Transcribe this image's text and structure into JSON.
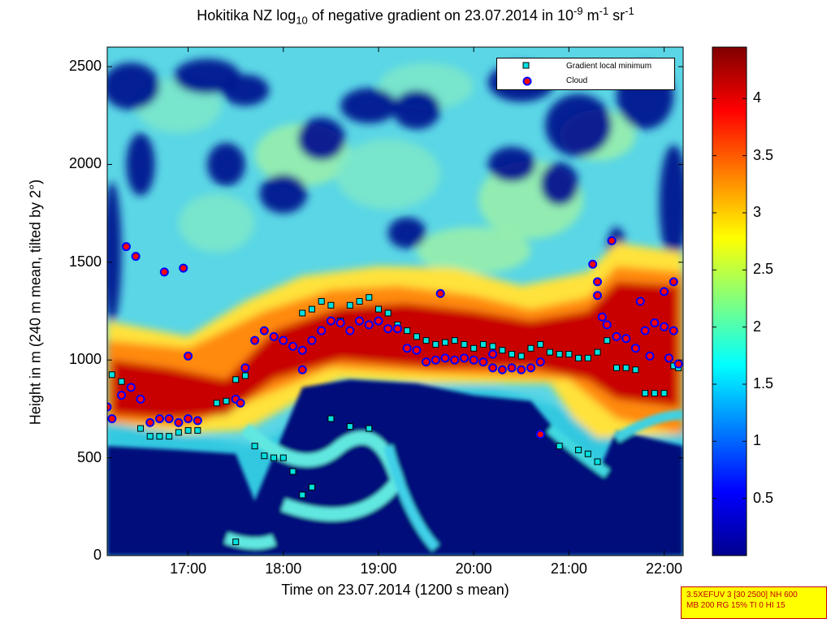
{
  "title": {
    "prefix": "Hokitika NZ log",
    "sub10": "10",
    "middle": " of negative gradient on 23.07.2014 in 10",
    "sup1": "-9",
    "m_unit": " m",
    "sup2": "-1",
    "sr_unit": " sr",
    "sup3": "-1"
  },
  "legend": {
    "entries": [
      {
        "label": "Gradient local minimum",
        "marker": "square",
        "fill": "#00e0e0",
        "edge": "#000000"
      },
      {
        "label": "Cloud",
        "marker": "circle",
        "fill": "#ff0000",
        "edge": "#0000ff"
      }
    ]
  },
  "settings": {
    "line1": "3.5XEFUV 3 [30 2500] NH 600",
    "line2": "MB 200 RG 15% TI 0 HI 15"
  },
  "chart_data": {
    "type": "heatmap",
    "title": "Hokitika NZ log10 of negative gradient on 23.07.2014 in 10^-9 m^-1 sr^-1",
    "xlabel": "Time on 23.07.2014 (1200 s mean)",
    "ylabel": "Height in m (240 m mean, tilted by 2°)",
    "xlim": [
      16.15,
      22.2
    ],
    "ylim": [
      0,
      2600
    ],
    "xticks": [
      17,
      18,
      19,
      20,
      21,
      22
    ],
    "xtick_labels": [
      "17:00",
      "18:00",
      "19:00",
      "20:00",
      "21:00",
      "22:00"
    ],
    "yticks": [
      0,
      500,
      1000,
      1500,
      2000,
      2500
    ],
    "ytick_labels": [
      "0",
      "500",
      "1000",
      "1500",
      "2000",
      "2500"
    ],
    "colorbar": {
      "colormap": "jet",
      "clim": [
        0,
        4.45
      ],
      "ticks": [
        0.5,
        1,
        1.5,
        2,
        2.5,
        3,
        3.5,
        4
      ],
      "tick_labels": [
        "0.5",
        "1",
        "1.5",
        "2",
        "2.5",
        "3",
        "3.5",
        "4"
      ]
    },
    "legend_location": "top-right",
    "series": [
      {
        "name": "Gradient local minimum",
        "marker": "square",
        "points": [
          [
            16.2,
            925
          ],
          [
            16.3,
            890
          ],
          [
            16.4,
            860
          ],
          [
            16.5,
            650
          ],
          [
            16.6,
            610
          ],
          [
            16.7,
            610
          ],
          [
            16.8,
            610
          ],
          [
            16.9,
            630
          ],
          [
            17.0,
            640
          ],
          [
            17.1,
            640
          ],
          [
            17.3,
            780
          ],
          [
            17.4,
            790
          ],
          [
            17.5,
            900
          ],
          [
            17.6,
            920
          ],
          [
            17.7,
            560
          ],
          [
            17.8,
            510
          ],
          [
            17.9,
            500
          ],
          [
            18.0,
            500
          ],
          [
            18.1,
            430
          ],
          [
            18.2,
            1240
          ],
          [
            18.3,
            1260
          ],
          [
            18.4,
            1300
          ],
          [
            18.5,
            1280
          ],
          [
            18.6,
            1200
          ],
          [
            18.7,
            1280
          ],
          [
            18.8,
            1300
          ],
          [
            18.9,
            1320
          ],
          [
            19.0,
            1260
          ],
          [
            19.1,
            1240
          ],
          [
            19.2,
            1180
          ],
          [
            19.3,
            1150
          ],
          [
            19.4,
            1120
          ],
          [
            19.5,
            1100
          ],
          [
            19.6,
            1080
          ],
          [
            19.7,
            1090
          ],
          [
            19.8,
            1100
          ],
          [
            19.9,
            1080
          ],
          [
            20.0,
            1060
          ],
          [
            20.1,
            1080
          ],
          [
            20.2,
            1070
          ],
          [
            20.3,
            1050
          ],
          [
            20.4,
            1030
          ],
          [
            20.5,
            1020
          ],
          [
            20.6,
            1060
          ],
          [
            20.7,
            1080
          ],
          [
            20.8,
            1040
          ],
          [
            20.9,
            1030
          ],
          [
            21.0,
            1030
          ],
          [
            21.1,
            1010
          ],
          [
            21.2,
            1010
          ],
          [
            21.3,
            1040
          ],
          [
            21.4,
            1100
          ],
          [
            21.5,
            960
          ],
          [
            21.6,
            960
          ],
          [
            21.7,
            950
          ],
          [
            21.8,
            830
          ],
          [
            21.9,
            830
          ],
          [
            22.0,
            830
          ],
          [
            22.1,
            970
          ],
          [
            22.15,
            960
          ],
          [
            18.3,
            350
          ],
          [
            18.2,
            310
          ],
          [
            18.5,
            700
          ],
          [
            18.7,
            660
          ],
          [
            18.9,
            650
          ],
          [
            20.9,
            560
          ],
          [
            21.1,
            540
          ],
          [
            21.2,
            520
          ],
          [
            21.3,
            480
          ],
          [
            17.5,
            70
          ]
        ]
      },
      {
        "name": "Cloud",
        "marker": "circle",
        "points": [
          [
            16.15,
            760
          ],
          [
            16.2,
            700
          ],
          [
            16.3,
            820
          ],
          [
            16.4,
            860
          ],
          [
            16.5,
            800
          ],
          [
            16.6,
            680
          ],
          [
            16.7,
            700
          ],
          [
            16.8,
            700
          ],
          [
            16.9,
            680
          ],
          [
            17.0,
            700
          ],
          [
            17.1,
            690
          ],
          [
            16.35,
            1580
          ],
          [
            16.45,
            1530
          ],
          [
            16.75,
            1450
          ],
          [
            16.95,
            1470
          ],
          [
            17.0,
            1020
          ],
          [
            17.5,
            800
          ],
          [
            17.55,
            780
          ],
          [
            17.6,
            960
          ],
          [
            17.7,
            1100
          ],
          [
            17.8,
            1150
          ],
          [
            17.9,
            1120
          ],
          [
            18.0,
            1100
          ],
          [
            18.1,
            1070
          ],
          [
            18.2,
            1050
          ],
          [
            18.3,
            1100
          ],
          [
            18.4,
            1150
          ],
          [
            18.5,
            1200
          ],
          [
            18.6,
            1190
          ],
          [
            18.7,
            1150
          ],
          [
            18.8,
            1200
          ],
          [
            18.9,
            1180
          ],
          [
            19.0,
            1200
          ],
          [
            19.1,
            1160
          ],
          [
            19.2,
            1160
          ],
          [
            19.3,
            1060
          ],
          [
            19.4,
            1050
          ],
          [
            19.5,
            990
          ],
          [
            19.6,
            1000
          ],
          [
            19.7,
            1010
          ],
          [
            19.8,
            1000
          ],
          [
            19.9,
            1010
          ],
          [
            20.0,
            1000
          ],
          [
            20.1,
            990
          ],
          [
            20.2,
            960
          ],
          [
            20.3,
            950
          ],
          [
            20.4,
            960
          ],
          [
            20.5,
            950
          ],
          [
            20.6,
            960
          ],
          [
            20.7,
            990
          ],
          [
            20.2,
            1030
          ],
          [
            19.65,
            1340
          ],
          [
            21.25,
            1490
          ],
          [
            21.3,
            1330
          ],
          [
            21.35,
            1220
          ],
          [
            21.4,
            1180
          ],
          [
            21.5,
            1120
          ],
          [
            21.6,
            1110
          ],
          [
            21.7,
            1060
          ],
          [
            21.8,
            1150
          ],
          [
            21.9,
            1190
          ],
          [
            22.0,
            1170
          ],
          [
            22.1,
            1150
          ],
          [
            21.3,
            1400
          ],
          [
            21.45,
            1610
          ],
          [
            21.75,
            1300
          ],
          [
            22.0,
            1350
          ],
          [
            22.1,
            1400
          ],
          [
            21.85,
            1020
          ],
          [
            22.05,
            1010
          ],
          [
            22.15,
            980
          ],
          [
            20.7,
            620
          ],
          [
            18.2,
            950
          ]
        ]
      }
    ]
  }
}
